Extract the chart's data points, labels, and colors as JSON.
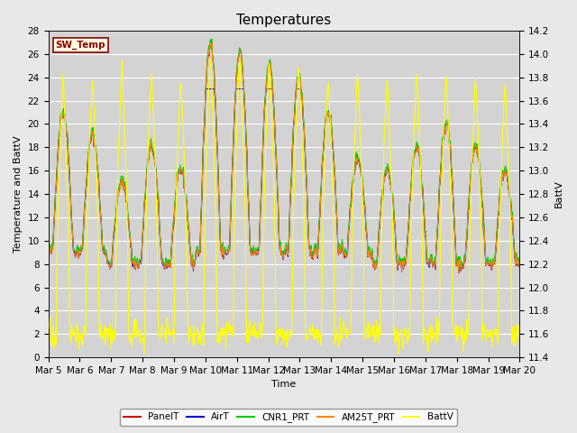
{
  "title": "Temperatures",
  "xlabel": "Time",
  "ylabel_left": "Temperature and BattV",
  "ylabel_right": "BattV",
  "x_tick_labels": [
    "Mar 5",
    "Mar 6",
    "Mar 7",
    "Mar 8",
    "Mar 9",
    "Mar 10",
    "Mar 11",
    "Mar 12",
    "Mar 13",
    "Mar 14",
    "Mar 15",
    "Mar 16",
    "Mar 17",
    "Mar 18",
    "Mar 19",
    "Mar 20"
  ],
  "ylim_left": [
    0,
    28
  ],
  "ylim_right": [
    11.4,
    14.2
  ],
  "yticks_left": [
    0,
    2,
    4,
    6,
    8,
    10,
    12,
    14,
    16,
    18,
    20,
    22,
    24,
    26,
    28
  ],
  "yticks_right": [
    11.4,
    11.6,
    11.8,
    12.0,
    12.2,
    12.4,
    12.6,
    12.8,
    13.0,
    13.2,
    13.4,
    13.6,
    13.8,
    14.0,
    14.2
  ],
  "series_colors": {
    "PanelT": "#cc0000",
    "AirT": "#0000cc",
    "CNR1_PRT": "#00cc00",
    "AM25T_PRT": "#ff8800",
    "BattV": "#ffff00"
  },
  "legend_label": "SW_Temp",
  "fig_bg_color": "#e8e8e8",
  "plot_bg_color": "#d3d3d3",
  "grid_color": "#ffffff",
  "title_fontsize": 11,
  "axis_fontsize": 8,
  "tick_fontsize": 7.5
}
